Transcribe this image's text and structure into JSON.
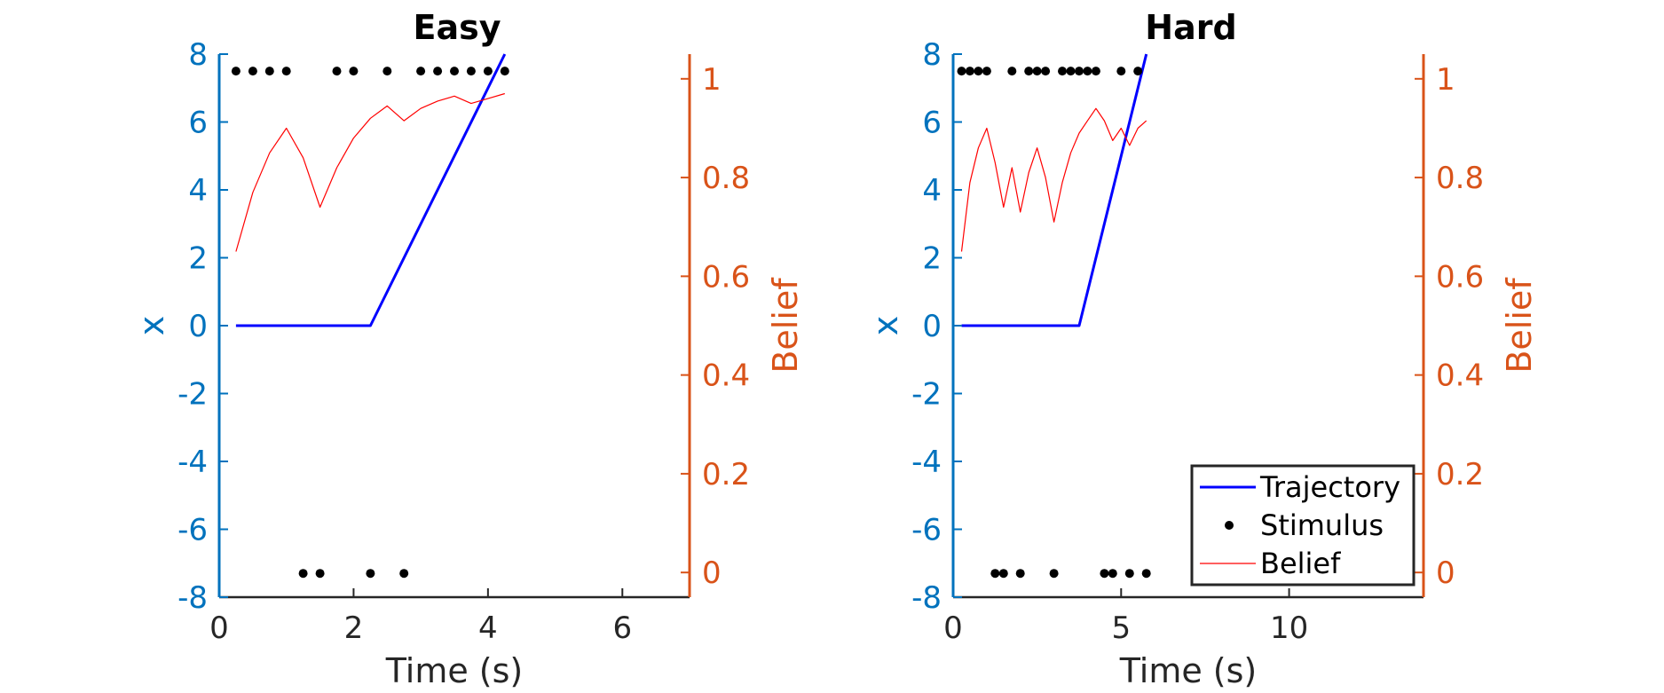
{
  "colors": {
    "left_axis": "#0072BD",
    "right_axis": "#D95319",
    "x_axis": "#262626",
    "trajectory": "#0000FF",
    "stimulus": "#000000",
    "belief": "#FF0000"
  },
  "legend": {
    "placement": "bottom-right",
    "entries": [
      {
        "key": "trajectory",
        "label": "Trajectory"
      },
      {
        "key": "stimulus",
        "label": "Stimulus"
      },
      {
        "key": "belief",
        "label": "Belief"
      }
    ]
  },
  "chart_data": [
    {
      "type": "line",
      "title": "Easy",
      "xlabel": "Time (s)",
      "ylabel_left": "x",
      "ylabel_right": "Belief",
      "xlim": [
        0,
        7
      ],
      "xticks": [
        0,
        2,
        4,
        6
      ],
      "ylim_left": [
        -8,
        8
      ],
      "yticks_left": [
        -8,
        -6,
        -4,
        -2,
        0,
        2,
        4,
        6,
        8
      ],
      "ylim_right": [
        -0.05,
        1.05
      ],
      "yticks_right": [
        0,
        0.2,
        0.4,
        0.6,
        0.8,
        1
      ],
      "grid": false,
      "legend": false,
      "series": [
        {
          "key": "trajectory",
          "axis": "left",
          "style": "line",
          "x": [
            0.25,
            2.25,
            4.25
          ],
          "y": [
            0,
            0,
            8
          ]
        },
        {
          "key": "stimulus",
          "axis": "left",
          "style": "markers",
          "x": [
            0.25,
            0.5,
            0.75,
            1.0,
            1.25,
            1.5,
            1.75,
            2.0,
            2.25,
            2.5,
            2.75,
            3.0,
            3.25,
            3.5,
            3.75,
            4.0,
            4.25
          ],
          "y": [
            7.5,
            7.5,
            7.5,
            7.5,
            -7.3,
            -7.3,
            7.5,
            7.5,
            -7.3,
            7.5,
            -7.3,
            7.5,
            7.5,
            7.5,
            7.5,
            7.5,
            7.5
          ]
        },
        {
          "key": "belief",
          "axis": "right",
          "style": "line",
          "x": [
            0.25,
            0.5,
            0.75,
            1.0,
            1.25,
            1.5,
            1.75,
            2.0,
            2.25,
            2.5,
            2.75,
            3.0,
            3.25,
            3.5,
            3.75,
            4.0,
            4.25
          ],
          "y": [
            0.65,
            0.77,
            0.85,
            0.9,
            0.84,
            0.74,
            0.82,
            0.88,
            0.92,
            0.945,
            0.915,
            0.94,
            0.955,
            0.965,
            0.95,
            0.96,
            0.97
          ]
        }
      ]
    },
    {
      "type": "line",
      "title": "Hard",
      "xlabel": "Time (s)",
      "ylabel_left": "x",
      "ylabel_right": "Belief",
      "xlim": [
        0,
        14
      ],
      "xticks": [
        0,
        5,
        10
      ],
      "ylim_left": [
        -8,
        8
      ],
      "yticks_left": [
        -8,
        -6,
        -4,
        -2,
        0,
        2,
        4,
        6,
        8
      ],
      "ylim_right": [
        -0.05,
        1.05
      ],
      "yticks_right": [
        0,
        0.2,
        0.4,
        0.6,
        0.8,
        1
      ],
      "grid": false,
      "legend": true,
      "series": [
        {
          "key": "trajectory",
          "axis": "left",
          "style": "line",
          "x": [
            0.25,
            3.75,
            5.75
          ],
          "y": [
            0,
            0,
            8
          ]
        },
        {
          "key": "stimulus",
          "axis": "left",
          "style": "markers",
          "x": [
            0.25,
            0.5,
            0.75,
            1.0,
            1.25,
            1.5,
            1.75,
            2.0,
            2.25,
            2.5,
            2.75,
            3.0,
            3.25,
            3.5,
            3.75,
            4.0,
            4.25,
            4.5,
            4.75,
            5.0,
            5.25,
            5.5,
            5.75
          ],
          "y": [
            7.5,
            7.5,
            7.5,
            7.5,
            -7.3,
            -7.3,
            7.5,
            -7.3,
            7.5,
            7.5,
            7.5,
            -7.3,
            7.5,
            7.5,
            7.5,
            7.5,
            7.5,
            -7.3,
            -7.3,
            7.5,
            -7.3,
            7.5,
            -7.3
          ]
        },
        {
          "key": "belief",
          "axis": "right",
          "style": "line",
          "x": [
            0.25,
            0.5,
            0.75,
            1.0,
            1.25,
            1.5,
            1.75,
            2.0,
            2.25,
            2.5,
            2.75,
            3.0,
            3.25,
            3.5,
            3.75,
            4.0,
            4.25,
            4.5,
            4.75,
            5.0,
            5.25,
            5.5,
            5.75
          ],
          "y": [
            0.65,
            0.79,
            0.86,
            0.9,
            0.83,
            0.74,
            0.82,
            0.73,
            0.81,
            0.86,
            0.8,
            0.71,
            0.79,
            0.85,
            0.89,
            0.915,
            0.94,
            0.915,
            0.875,
            0.9,
            0.865,
            0.9,
            0.915
          ]
        }
      ]
    }
  ]
}
